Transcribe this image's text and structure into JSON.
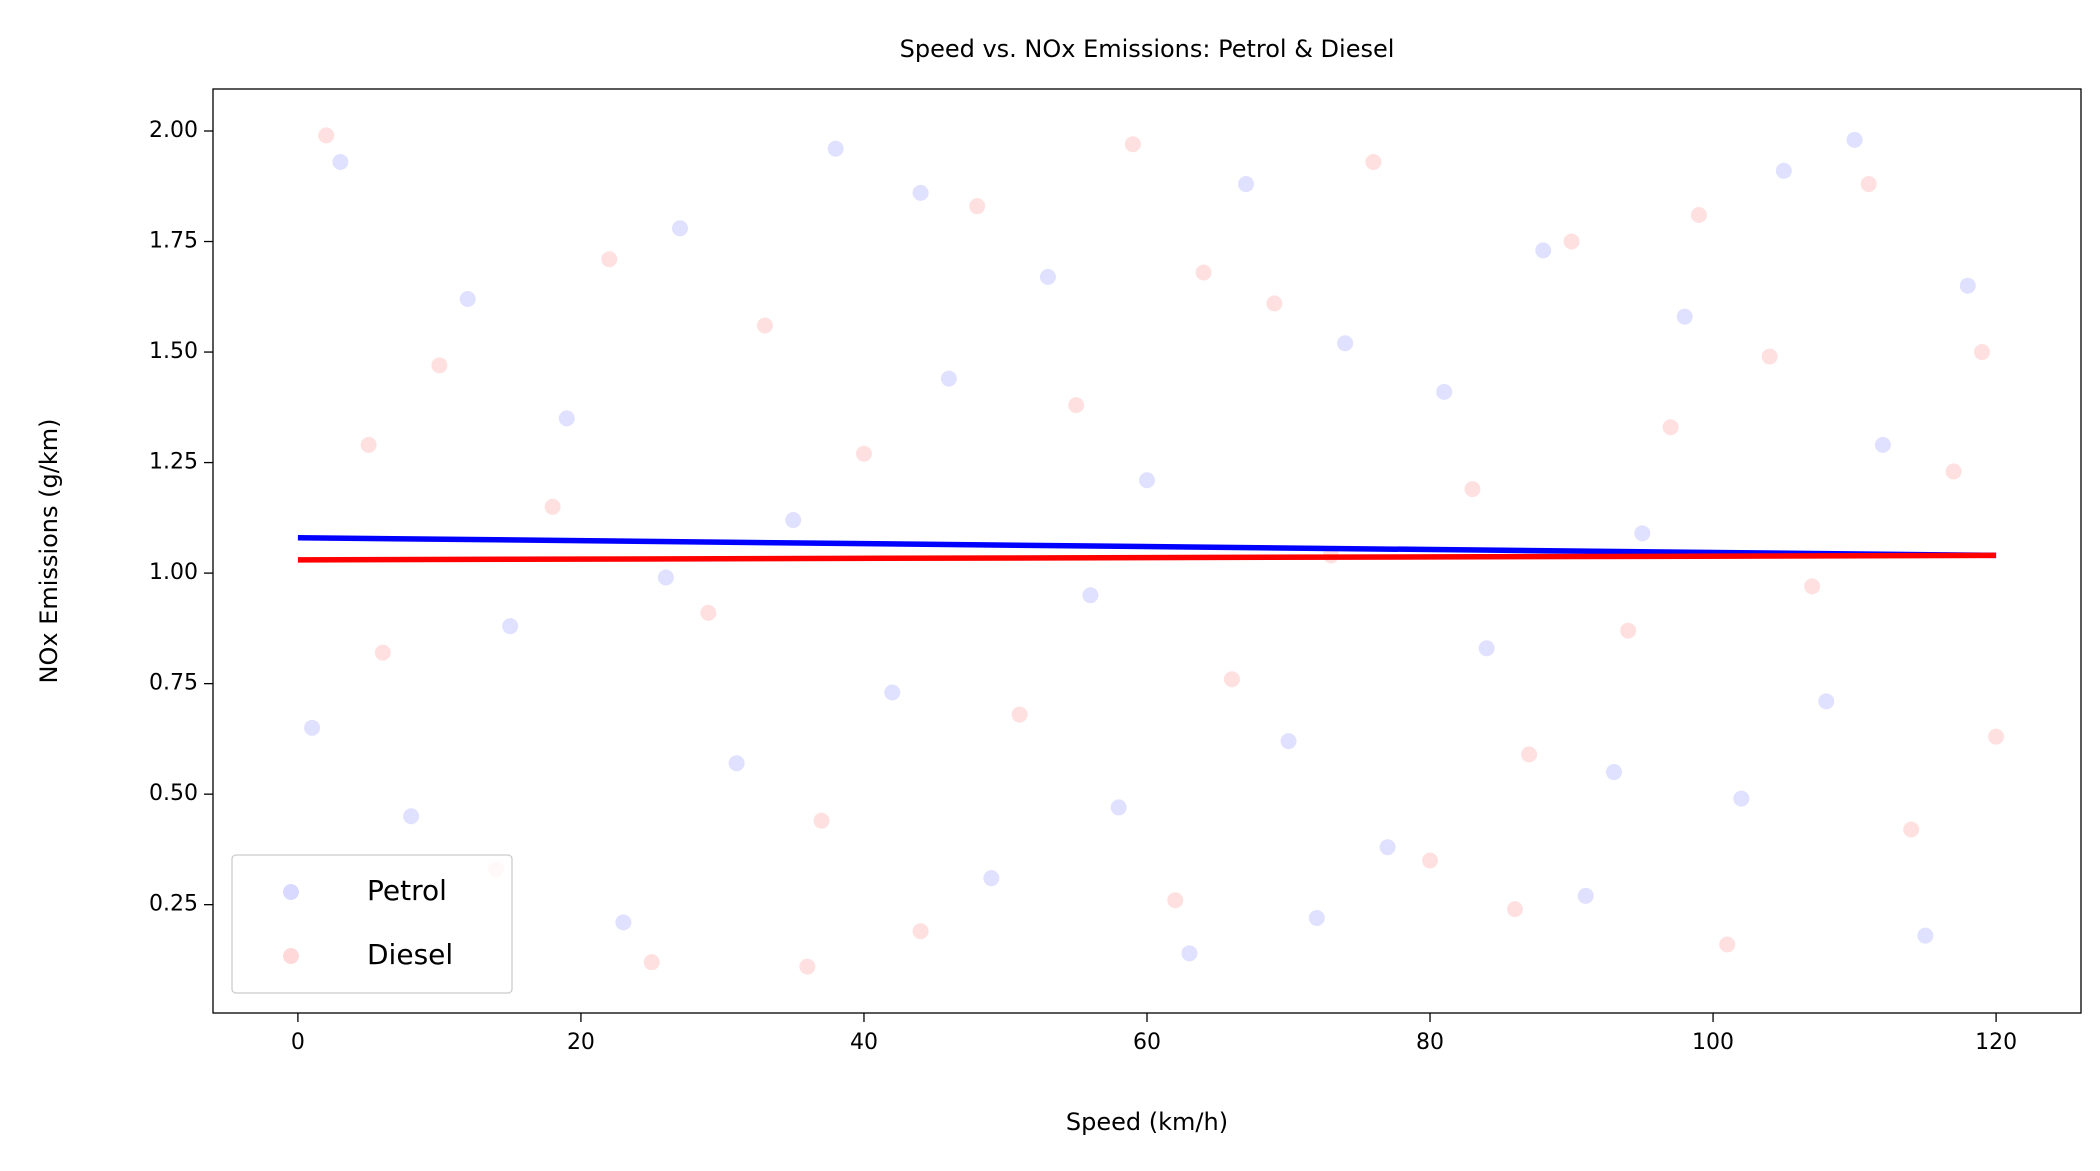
{
  "chart_data": {
    "type": "scatter",
    "title": "Speed vs. NOx Emissions: Petrol & Diesel",
    "xlabel": "Speed (km/h)",
    "ylabel": "NOx Emissions (g/km)",
    "xlim": [
      -6,
      126
    ],
    "ylim": [
      0.005,
      2.095
    ],
    "xticks": [
      0,
      20,
      40,
      60,
      80,
      100,
      120
    ],
    "yticks": [
      0.25,
      {
        "value": 0.5,
        "label": "0.50"
      },
      0.75,
      {
        "value": 1,
        "label": "1.00"
      },
      1.25,
      {
        "value": 1.5,
        "label": "1.50"
      },
      1.75,
      {
        "value": 2,
        "label": "2.00"
      }
    ],
    "grid": false,
    "legend": "lower left",
    "series": [
      {
        "name": "Petrol",
        "color": "#0000ff",
        "x": [
          3,
          8,
          12,
          15,
          19,
          23,
          27,
          31,
          35,
          38,
          42,
          46,
          49,
          53,
          56,
          60,
          63,
          67,
          70,
          74,
          77,
          81,
          84,
          88,
          91,
          95,
          98,
          102,
          105,
          108,
          112,
          115,
          118,
          1,
          26,
          44,
          72,
          93,
          110,
          58
        ],
        "values": [
          1.93,
          0.45,
          1.62,
          0.88,
          1.35,
          0.21,
          1.78,
          0.57,
          1.12,
          1.96,
          0.73,
          1.44,
          0.31,
          1.67,
          0.95,
          1.21,
          0.14,
          1.88,
          0.62,
          1.52,
          0.38,
          1.41,
          0.83,
          1.73,
          0.27,
          1.09,
          1.58,
          0.49,
          1.91,
          0.71,
          1.29,
          0.18,
          1.65,
          0.65,
          0.99,
          1.86,
          0.22,
          0.55,
          1.98,
          0.47
        ],
        "trend": {
          "x": [
            0,
            120
          ],
          "values": [
            1.08,
            1.04
          ]
        }
      },
      {
        "name": "Diesel",
        "color": "#ff0000",
        "x": [
          2,
          6,
          10,
          14,
          18,
          22,
          25,
          29,
          33,
          37,
          40,
          44,
          48,
          51,
          55,
          59,
          62,
          66,
          69,
          73,
          76,
          80,
          83,
          87,
          90,
          94,
          97,
          101,
          104,
          107,
          111,
          114,
          117,
          120,
          5,
          36,
          64,
          86,
          99,
          119
        ],
        "values": [
          1.99,
          0.82,
          1.47,
          0.33,
          1.15,
          1.71,
          0.12,
          0.91,
          1.56,
          0.44,
          1.27,
          0.19,
          1.83,
          0.68,
          1.38,
          1.97,
          0.26,
          0.76,
          1.61,
          1.04,
          1.93,
          0.35,
          1.19,
          0.59,
          1.75,
          0.87,
          1.33,
          0.16,
          1.49,
          0.97,
          1.88,
          0.42,
          1.23,
          0.63,
          1.29,
          0.11,
          1.68,
          0.24,
          1.81,
          1.5
        ],
        "trend": {
          "x": [
            0,
            120
          ],
          "values": [
            1.03,
            1.04
          ]
        }
      }
    ]
  }
}
